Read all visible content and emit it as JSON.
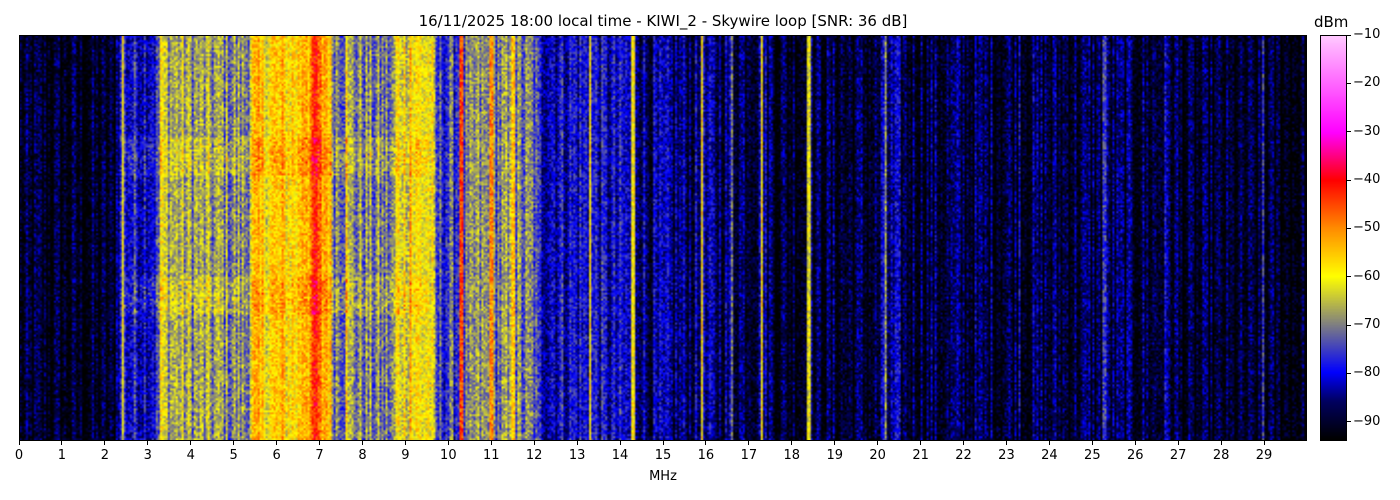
{
  "chart_data": {
    "type": "heatmap",
    "title": "16/11/2025 18:00 local time - KIWI_2 - Skywire loop [SNR: 36 dB]",
    "xlabel": "MHz",
    "xlim": [
      0,
      30
    ],
    "x_ticks": [
      "0",
      "1",
      "2",
      "3",
      "4",
      "5",
      "6",
      "7",
      "8",
      "9",
      "10",
      "11",
      "12",
      "13",
      "14",
      "15",
      "16",
      "17",
      "18",
      "19",
      "20",
      "21",
      "22",
      "23",
      "24",
      "25",
      "26",
      "27",
      "28",
      "29"
    ],
    "colorbar": {
      "label": "dBm",
      "range": [
        -94,
        -10
      ],
      "ticks": [
        "−10",
        "−20",
        "−30",
        "−40",
        "−50",
        "−60",
        "−70",
        "−80",
        "−90"
      ],
      "tick_values": [
        -10,
        -20,
        -30,
        -40,
        -50,
        -60,
        -70,
        -80,
        -90
      ],
      "colormap": [
        [
          -94,
          "#000000"
        ],
        [
          -86,
          "#000060"
        ],
        [
          -80,
          "#0000ff"
        ],
        [
          -70,
          "#808080"
        ],
        [
          -60,
          "#ffff00"
        ],
        [
          -50,
          "#ff8c00"
        ],
        [
          -40,
          "#ff0000"
        ],
        [
          -30,
          "#ff00ff"
        ],
        [
          -10,
          "#ffc8ff"
        ]
      ]
    },
    "band_levels_dbm": [
      [
        0,
        -92
      ],
      [
        2.2,
        -92
      ],
      [
        2.3,
        -80
      ],
      [
        3.2,
        -78
      ],
      [
        3.3,
        -65
      ],
      [
        4.0,
        -68
      ],
      [
        5.3,
        -70
      ],
      [
        5.4,
        -58
      ],
      [
        6.5,
        -57
      ],
      [
        6.6,
        -50
      ],
      [
        7.2,
        -52
      ],
      [
        7.3,
        -68
      ],
      [
        8.0,
        -70
      ],
      [
        8.7,
        -72
      ],
      [
        8.8,
        -60
      ],
      [
        9.6,
        -60
      ],
      [
        9.7,
        -76
      ],
      [
        10.5,
        -74
      ],
      [
        10.6,
        -70
      ],
      [
        12.0,
        -72
      ],
      [
        12.1,
        -80
      ],
      [
        13.5,
        -80
      ],
      [
        13.6,
        -82
      ],
      [
        14.5,
        -82
      ],
      [
        14.6,
        -86
      ],
      [
        17.5,
        -86
      ],
      [
        17.6,
        -90
      ],
      [
        20.0,
        -90
      ],
      [
        20.1,
        -86
      ],
      [
        20.5,
        -86
      ],
      [
        20.6,
        -89
      ],
      [
        27.0,
        -89
      ],
      [
        27.1,
        -92
      ],
      [
        30,
        -92
      ]
    ],
    "carrier_lines": [
      [
        2.4,
        -60
      ],
      [
        3.3,
        -58
      ],
      [
        6.9,
        -42
      ],
      [
        7.6,
        -55
      ],
      [
        9.1,
        -52
      ],
      [
        10.3,
        -45
      ],
      [
        11.0,
        -50
      ],
      [
        11.5,
        -55
      ],
      [
        13.3,
        -58
      ],
      [
        14.3,
        -60
      ],
      [
        15.9,
        -58
      ],
      [
        16.6,
        -70
      ],
      [
        17.3,
        -58
      ],
      [
        18.4,
        -62
      ],
      [
        20.2,
        -68
      ],
      [
        23.3,
        -80
      ],
      [
        25.3,
        -75
      ],
      [
        26.7,
        -80
      ],
      [
        29.0,
        -75
      ]
    ]
  }
}
